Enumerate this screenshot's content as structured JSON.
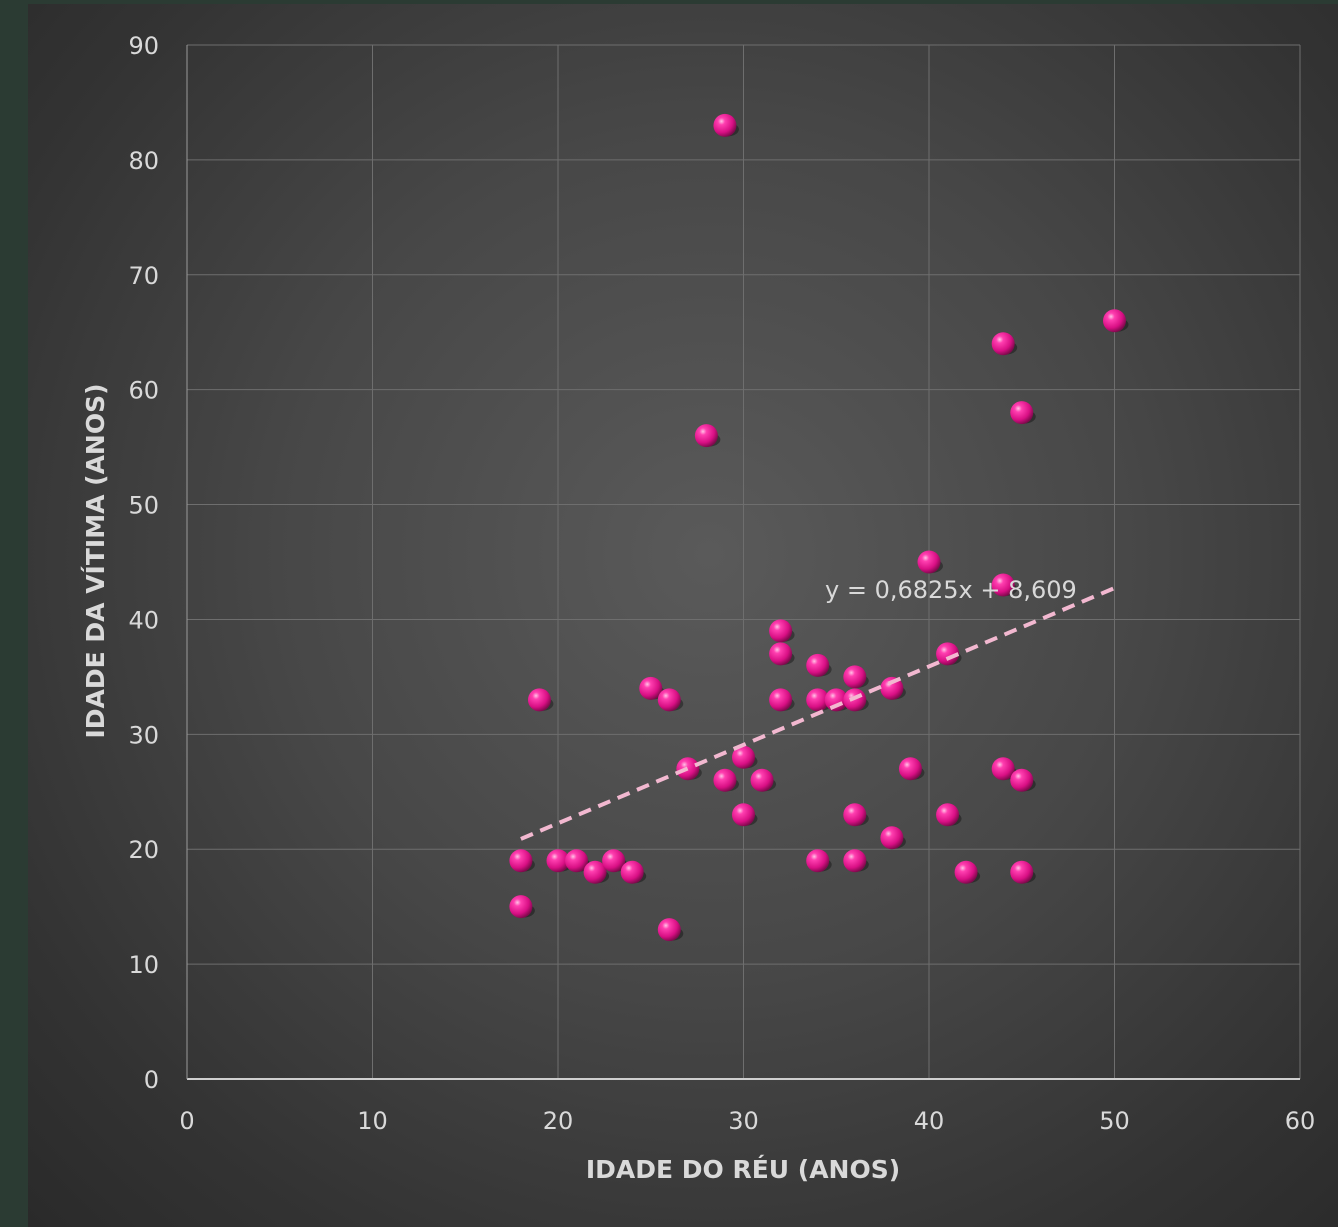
{
  "chart_data": {
    "type": "scatter",
    "xlabel": "IDADE DO RÉU (ANOS)",
    "ylabel": "IDADE DA VÍTIMA  (ANOS)",
    "xlim": [
      0,
      60
    ],
    "ylim": [
      0,
      90
    ],
    "x_ticks": [
      "0",
      "10",
      "20",
      "30",
      "40",
      "50",
      "60"
    ],
    "y_ticks": [
      "0",
      "10",
      "20",
      "30",
      "40",
      "50",
      "60",
      "70",
      "80",
      "90"
    ],
    "grid": true,
    "marker_color": "#e6168c",
    "trendline": {
      "equation": "y = 0,6825x + 8,609",
      "slope": 0.6825,
      "intercept": 8.609,
      "x_range": [
        18,
        50
      ],
      "color": "#f2b8d0",
      "style": "dashed"
    },
    "series": [
      {
        "points": [
          {
            "x": 18,
            "y": 15
          },
          {
            "x": 18,
            "y": 19
          },
          {
            "x": 19,
            "y": 33
          },
          {
            "x": 20,
            "y": 19
          },
          {
            "x": 21,
            "y": 19
          },
          {
            "x": 22,
            "y": 18
          },
          {
            "x": 23,
            "y": 19
          },
          {
            "x": 24,
            "y": 18
          },
          {
            "x": 25,
            "y": 34
          },
          {
            "x": 26,
            "y": 33
          },
          {
            "x": 26,
            "y": 13
          },
          {
            "x": 27,
            "y": 27
          },
          {
            "x": 28,
            "y": 56
          },
          {
            "x": 29,
            "y": 83
          },
          {
            "x": 29,
            "y": 26
          },
          {
            "x": 30,
            "y": 28
          },
          {
            "x": 30,
            "y": 23
          },
          {
            "x": 31,
            "y": 26
          },
          {
            "x": 32,
            "y": 39
          },
          {
            "x": 32,
            "y": 37
          },
          {
            "x": 32,
            "y": 33
          },
          {
            "x": 34,
            "y": 36
          },
          {
            "x": 34,
            "y": 33
          },
          {
            "x": 34,
            "y": 19
          },
          {
            "x": 35,
            "y": 33
          },
          {
            "x": 36,
            "y": 35
          },
          {
            "x": 36,
            "y": 33
          },
          {
            "x": 36,
            "y": 23
          },
          {
            "x": 36,
            "y": 19
          },
          {
            "x": 38,
            "y": 34
          },
          {
            "x": 38,
            "y": 21
          },
          {
            "x": 39,
            "y": 27
          },
          {
            "x": 40,
            "y": 45
          },
          {
            "x": 41,
            "y": 37
          },
          {
            "x": 41,
            "y": 23
          },
          {
            "x": 42,
            "y": 18
          },
          {
            "x": 44,
            "y": 64
          },
          {
            "x": 44,
            "y": 43
          },
          {
            "x": 44,
            "y": 27
          },
          {
            "x": 45,
            "y": 58
          },
          {
            "x": 45,
            "y": 26
          },
          {
            "x": 45,
            "y": 18
          },
          {
            "x": 50,
            "y": 66
          }
        ]
      }
    ]
  }
}
